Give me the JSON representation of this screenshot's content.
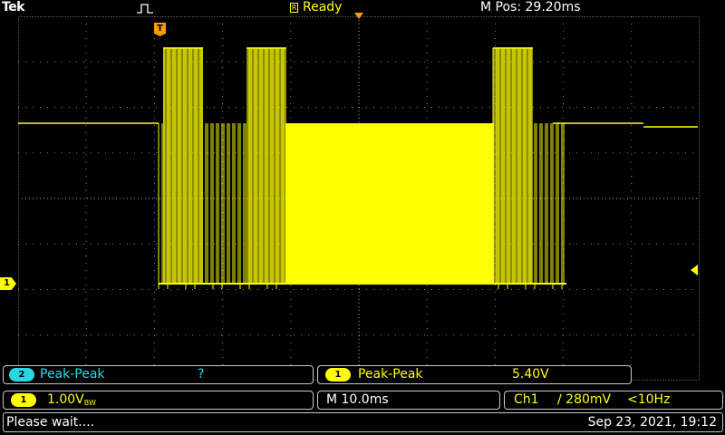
{
  "header": {
    "brand": "Tek",
    "acquisition_state_icon": "square-pulse-icon",
    "trigger_status_box": "R",
    "trigger_status": "Ready",
    "horizontal_position": "M Pos: 29.20ms"
  },
  "display": {
    "trace_color": "#ffff00",
    "grid_color": "#888888",
    "trigger_marker_label": "T",
    "channel1_marker_label": "1"
  },
  "measurements": [
    {
      "channel": "2",
      "type": "Peak-Peak",
      "value": "?",
      "color": "#2ad8e4"
    },
    {
      "channel": "1",
      "type": "Peak-Peak",
      "value": "5.40V",
      "color": "#ffff00"
    }
  ],
  "channel1": {
    "badge": "1",
    "scale": "1.00V",
    "bandwidth_flag": "BW"
  },
  "timebase": "M 10.0ms",
  "trigger": {
    "source": "Ch1",
    "slope_level": "∕ 280mV",
    "frequency": "<10Hz"
  },
  "status": {
    "message": "Please wait....",
    "datetime": "Sep 23, 2021, 19:12"
  }
}
